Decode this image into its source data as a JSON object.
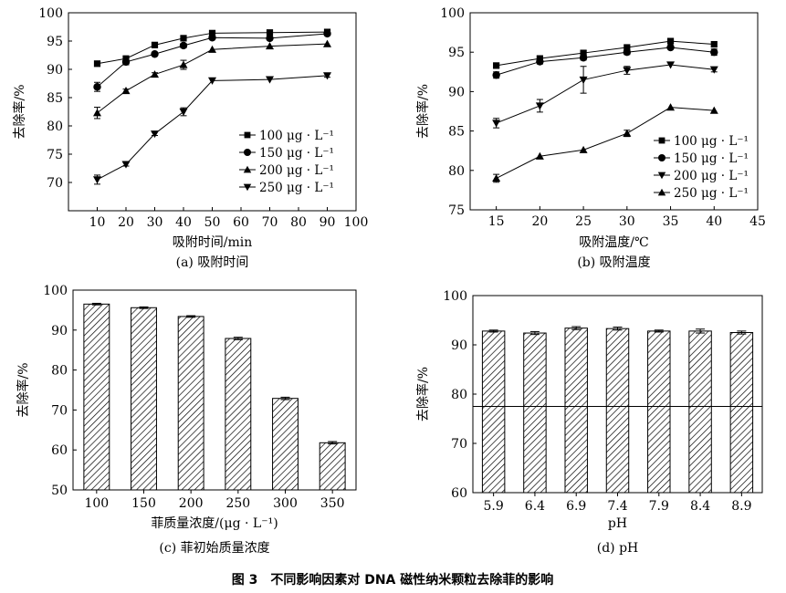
{
  "figure_caption": "图 3　不同影响因素对 DNA 磁性纳米颗粒去除菲的影响",
  "chart_data": [
    {
      "id": "a",
      "type": "line",
      "caption": "(a) 吸附时间",
      "xlabel": "吸附时间/min",
      "ylabel": "去除率/%",
      "xlim": [
        0,
        100
      ],
      "ylim": [
        65,
        100
      ],
      "xticks": [
        10,
        20,
        30,
        40,
        50,
        60,
        70,
        80,
        90,
        100
      ],
      "yticks": [
        70,
        75,
        80,
        85,
        90,
        95,
        100
      ],
      "legend_position": "center-right",
      "series": [
        {
          "name": "100 μg · L⁻¹",
          "marker": "square",
          "x": [
            10,
            20,
            30,
            40,
            50,
            70,
            90
          ],
          "y": [
            91.0,
            91.9,
            94.3,
            95.5,
            96.4,
            96.5,
            96.6
          ],
          "err": [
            0.2,
            0.3,
            0.2,
            0.3,
            0.2,
            0.2,
            0.2
          ]
        },
        {
          "name": "150 μg · L⁻¹",
          "marker": "circle",
          "x": [
            10,
            20,
            30,
            40,
            50,
            70,
            90
          ],
          "y": [
            86.9,
            91.3,
            92.7,
            94.2,
            95.6,
            95.5,
            96.3
          ],
          "err": [
            0.8,
            0.5,
            0.3,
            0.4,
            0.2,
            0.3,
            0.2
          ]
        },
        {
          "name": "200 μg · L⁻¹",
          "marker": "triangle-up",
          "x": [
            10,
            20,
            30,
            40,
            50,
            70,
            90
          ],
          "y": [
            82.3,
            86.2,
            89.1,
            90.8,
            93.5,
            94.1,
            94.5
          ],
          "err": [
            1.0,
            0.3,
            0.3,
            0.8,
            0.2,
            0.2,
            0.2
          ]
        },
        {
          "name": "250 μg · L⁻¹",
          "marker": "triangle-down",
          "x": [
            10,
            20,
            30,
            40,
            50,
            70,
            90
          ],
          "y": [
            70.5,
            73.2,
            78.6,
            82.5,
            88.0,
            88.2,
            88.9
          ],
          "err": [
            0.8,
            0.3,
            0.3,
            0.7,
            0.2,
            0.2,
            0.3
          ]
        }
      ]
    },
    {
      "id": "b",
      "type": "line",
      "caption": "(b) 吸附温度",
      "xlabel": "吸附温度/℃",
      "ylabel": "去除率/%",
      "xlim": [
        12,
        45
      ],
      "ylim": [
        75,
        100
      ],
      "xticks": [
        15,
        20,
        25,
        30,
        35,
        40,
        45
      ],
      "yticks": [
        75,
        80,
        85,
        90,
        95,
        100
      ],
      "legend_position": "bottom-right",
      "series": [
        {
          "name": "100 μg · L⁻¹",
          "marker": "square",
          "x": [
            15,
            20,
            25,
            30,
            35,
            40
          ],
          "y": [
            93.3,
            94.2,
            94.9,
            95.6,
            96.4,
            96.0
          ],
          "err": [
            0.2,
            0.2,
            0.3,
            0.2,
            0.2,
            0.2
          ]
        },
        {
          "name": "150 μg · L⁻¹",
          "marker": "circle",
          "x": [
            15,
            20,
            25,
            30,
            35,
            40
          ],
          "y": [
            92.1,
            93.8,
            94.3,
            95.0,
            95.6,
            95.0
          ],
          "err": [
            0.4,
            0.3,
            0.3,
            0.3,
            0.2,
            0.4
          ]
        },
        {
          "name": "200 μg · L⁻¹",
          "marker": "triangle-down",
          "x": [
            15,
            20,
            25,
            30,
            35,
            40
          ],
          "y": [
            86.0,
            88.2,
            91.5,
            92.7,
            93.4,
            92.8
          ],
          "err": [
            0.6,
            0.8,
            1.7,
            0.5,
            0.2,
            0.3
          ]
        },
        {
          "name": "250 μg · L⁻¹",
          "marker": "triangle-up",
          "x": [
            15,
            20,
            25,
            30,
            35,
            40
          ],
          "y": [
            79.0,
            81.8,
            82.6,
            84.7,
            88.0,
            87.6
          ],
          "err": [
            0.5,
            0.2,
            0.2,
            0.4,
            0.2,
            0.2
          ]
        }
      ]
    },
    {
      "id": "c",
      "type": "bar",
      "caption": "(c) 菲初始质量浓度",
      "xlabel": "菲质量浓度/(μg · L⁻¹)",
      "ylabel": "去除率/%",
      "ylim": [
        50,
        100
      ],
      "yticks": [
        50,
        60,
        70,
        80,
        90,
        100
      ],
      "categories": [
        "100",
        "150",
        "200",
        "250",
        "300",
        "350"
      ],
      "values": [
        96.5,
        95.6,
        93.4,
        87.9,
        72.9,
        61.8
      ],
      "err": [
        0.2,
        0.2,
        0.2,
        0.3,
        0.3,
        0.3
      ]
    },
    {
      "id": "d",
      "type": "bar",
      "caption": "(d) pH",
      "xlabel": "pH",
      "ylabel": "去除率/%",
      "ylim": [
        60,
        100
      ],
      "yticks": [
        60,
        70,
        80,
        90,
        100
      ],
      "categories": [
        "5.9",
        "6.4",
        "6.9",
        "7.4",
        "7.9",
        "8.4",
        "8.9"
      ],
      "values": [
        92.8,
        92.4,
        93.4,
        93.3,
        92.8,
        92.8,
        92.5
      ],
      "err": [
        0.2,
        0.3,
        0.3,
        0.3,
        0.2,
        0.4,
        0.3
      ],
      "reference_line": 77.5
    }
  ]
}
